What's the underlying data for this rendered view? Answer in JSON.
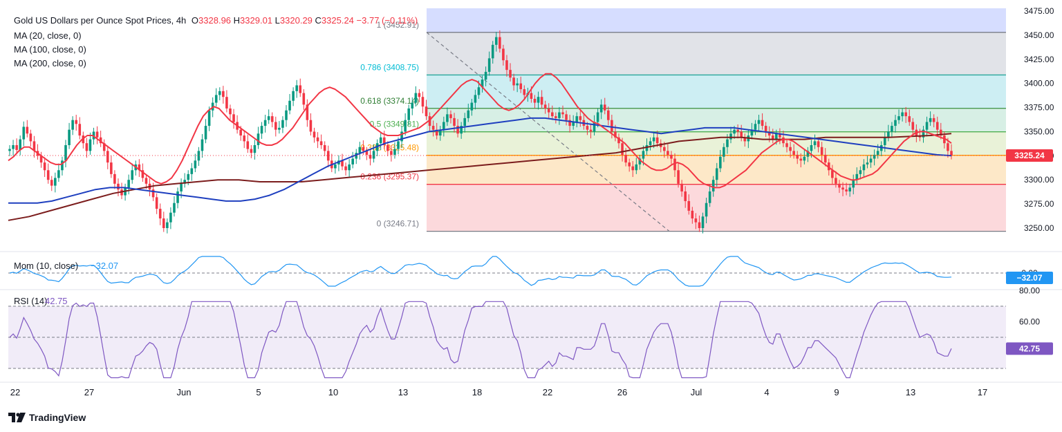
{
  "header": {
    "title": "Gold US Dollars per Ounce Spot Prices, 4h",
    "o_label": "O",
    "o_value": "3328.96",
    "h_label": "H",
    "h_value": "3329.01",
    "l_label": "L",
    "l_value": "3320.29",
    "c_label": "C",
    "c_value": "3325.24",
    "change": "−3.77 (−0.11%)"
  },
  "indicators_legend": [
    "MA (20, close, 0)",
    "MA (100, close, 0)",
    "MA (200, close, 0)"
  ],
  "brand": "TradingView",
  "colors": {
    "up": "#089981",
    "down": "#f23645",
    "ma20": "#f23645",
    "ma100": "#1e3fbf",
    "ma200": "#7b1c1c",
    "momentum": "#2196f3",
    "rsi": "#7e57c2"
  },
  "chart_data": [
    {
      "type": "candlestick",
      "x_tick_labels": [
        "22",
        "27",
        "Jun",
        "5",
        "10",
        "13",
        "18",
        "22",
        "26",
        "Jul",
        "4",
        "9",
        "13",
        "17"
      ],
      "y_tick_labels": [
        "3475.00",
        "3450.00",
        "3425.00",
        "3400.00",
        "3375.00",
        "3350.00",
        "3325.00",
        "3300.00",
        "3275.00",
        "3250.00"
      ],
      "ylim": [
        3240,
        3480
      ],
      "last_price": "3325.24",
      "last_price_value": 3325.24,
      "fibonacci": [
        {
          "level": "1",
          "label": "1 (3452.91)",
          "value": 3452.91
        },
        {
          "level": "0.786",
          "label": "0.786 (3408.75)",
          "value": 3408.75
        },
        {
          "level": "0.618",
          "label": "0.618 (3374.14)",
          "value": 3374.14
        },
        {
          "level": "0.5",
          "label": "0.5 (3349.81)",
          "value": 3349.81
        },
        {
          "level": "0.382",
          "label": "0.382 (3325.48)",
          "value": 3325.48
        },
        {
          "level": "0.236",
          "label": "0.236 (3295.37)",
          "value": 3295.37
        },
        {
          "level": "0",
          "label": "0 (3246.71)",
          "value": 3246.71
        }
      ],
      "closes_approx": [
        3332,
        3336,
        3331,
        3342,
        3355,
        3348,
        3340,
        3330,
        3325,
        3318,
        3310,
        3300,
        3294,
        3302,
        3310,
        3320,
        3336,
        3352,
        3362,
        3358,
        3346,
        3338,
        3330,
        3342,
        3350,
        3344,
        3338,
        3330,
        3318,
        3306,
        3296,
        3290,
        3284,
        3292,
        3300,
        3310,
        3316,
        3310,
        3302,
        3296,
        3290,
        3282,
        3270,
        3260,
        3250,
        3256,
        3266,
        3276,
        3288,
        3296,
        3300,
        3306,
        3312,
        3320,
        3330,
        3342,
        3356,
        3372,
        3380,
        3388,
        3392,
        3386,
        3374,
        3368,
        3360,
        3352,
        3346,
        3340,
        3332,
        3328,
        3336,
        3348,
        3356,
        3362,
        3366,
        3360,
        3352,
        3354,
        3362,
        3372,
        3382,
        3392,
        3398,
        3390,
        3378,
        3362,
        3350,
        3344,
        3340,
        3336,
        3330,
        3320,
        3312,
        3316,
        3320,
        3314,
        3310,
        3316,
        3322,
        3328,
        3334,
        3330,
        3326,
        3322,
        3330,
        3338,
        3344,
        3336,
        3330,
        3326,
        3332,
        3340,
        3350,
        3362,
        3374,
        3380,
        3390,
        3386,
        3376,
        3366,
        3356,
        3352,
        3346,
        3352,
        3360,
        3368,
        3364,
        3356,
        3348,
        3356,
        3364,
        3372,
        3380,
        3388,
        3396,
        3404,
        3412,
        3426,
        3440,
        3448,
        3436,
        3424,
        3414,
        3406,
        3398,
        3400,
        3394,
        3388,
        3390,
        3384,
        3380,
        3386,
        3378,
        3374,
        3370,
        3366,
        3364,
        3370,
        3368,
        3362,
        3356,
        3360,
        3366,
        3362,
        3356,
        3352,
        3350,
        3360,
        3370,
        3378,
        3372,
        3362,
        3350,
        3344,
        3338,
        3326,
        3318,
        3314,
        3310,
        3316,
        3322,
        3330,
        3336,
        3340,
        3344,
        3338,
        3334,
        3330,
        3326,
        3322,
        3310,
        3296,
        3288,
        3278,
        3268,
        3260,
        3256,
        3250,
        3262,
        3276,
        3288,
        3300,
        3312,
        3324,
        3334,
        3342,
        3348,
        3352,
        3350,
        3344,
        3340,
        3346,
        3352,
        3358,
        3362,
        3356,
        3350,
        3346,
        3342,
        3348,
        3344,
        3338,
        3334,
        3330,
        3326,
        3322,
        3320,
        3324,
        3330,
        3336,
        3340,
        3334,
        3326,
        3318,
        3310,
        3302,
        3296,
        3292,
        3290,
        3288,
        3292,
        3300,
        3306,
        3310,
        3316,
        3318,
        3322,
        3326,
        3330,
        3336,
        3344,
        3350,
        3356,
        3362,
        3366,
        3370,
        3366,
        3360,
        3352,
        3346,
        3344,
        3352,
        3360,
        3364,
        3360,
        3352,
        3346,
        3338,
        3330,
        3325.24
      ],
      "ma20_approx": [
        3320,
        3324,
        3330,
        3334,
        3334,
        3330,
        3326,
        3322,
        3318,
        3316,
        3316,
        3320,
        3328,
        3336,
        3342,
        3346,
        3346,
        3342,
        3338,
        3334,
        3330,
        3326,
        3322,
        3318,
        3314,
        3310,
        3306,
        3302,
        3298,
        3296,
        3298,
        3302,
        3310,
        3320,
        3332,
        3344,
        3356,
        3366,
        3372,
        3376,
        3374,
        3368,
        3362,
        3358,
        3354,
        3350,
        3346,
        3342,
        3338,
        3336,
        3336,
        3338,
        3342,
        3348,
        3354,
        3362,
        3370,
        3378,
        3384,
        3390,
        3394,
        3396,
        3394,
        3390,
        3386,
        3380,
        3374,
        3368,
        3362,
        3356,
        3352,
        3348,
        3346,
        3346,
        3346,
        3348,
        3350,
        3352,
        3354,
        3358,
        3362,
        3368,
        3374,
        3380,
        3386,
        3392,
        3398,
        3402,
        3404,
        3402,
        3396,
        3390,
        3384,
        3378,
        3374,
        3372,
        3374,
        3378,
        3384,
        3392,
        3400,
        3406,
        3410,
        3410,
        3406,
        3400,
        3392,
        3384,
        3376,
        3370,
        3364,
        3360,
        3358,
        3354,
        3350,
        3346,
        3342,
        3338,
        3332,
        3326,
        3320,
        3316,
        3312,
        3310,
        3310,
        3312,
        3316,
        3318,
        3316,
        3312,
        3306,
        3300,
        3296,
        3294,
        3292,
        3292,
        3294,
        3298,
        3302,
        3306,
        3310,
        3316,
        3322,
        3328,
        3332,
        3336,
        3340,
        3342,
        3342,
        3340,
        3336,
        3332,
        3328,
        3324,
        3320,
        3316,
        3312,
        3308,
        3304,
        3302,
        3300,
        3300,
        3302,
        3304,
        3306,
        3310,
        3316,
        3322,
        3328,
        3334,
        3340,
        3344,
        3348,
        3350,
        3350,
        3348,
        3346,
        3344,
        3342,
        3338
      ],
      "ma100_approx": [
        3276,
        3276,
        3276,
        3278,
        3282,
        3286,
        3290,
        3292,
        3292,
        3290,
        3288,
        3286,
        3284,
        3282,
        3280,
        3278,
        3278,
        3280,
        3284,
        3290,
        3298,
        3306,
        3314,
        3320,
        3326,
        3332,
        3338,
        3342,
        3346,
        3350,
        3352,
        3354,
        3356,
        3358,
        3360,
        3362,
        3364,
        3364,
        3362,
        3360,
        3358,
        3356,
        3354,
        3352,
        3350,
        3348,
        3350,
        3352,
        3354,
        3354,
        3354,
        3352,
        3350,
        3348,
        3346,
        3344,
        3342,
        3340,
        3338,
        3336,
        3334,
        3332,
        3330,
        3328,
        3326,
        3325
      ],
      "ma200_approx": [
        3258,
        3262,
        3268,
        3274,
        3280,
        3286,
        3290,
        3294,
        3296,
        3298,
        3300,
        3300,
        3298,
        3298,
        3298,
        3300,
        3302,
        3304,
        3306,
        3308,
        3310,
        3312,
        3314,
        3316,
        3318,
        3320,
        3322,
        3324,
        3326,
        3328,
        3332,
        3336,
        3340,
        3342,
        3344,
        3344,
        3342,
        3342,
        3342,
        3344,
        3344,
        3344,
        3344,
        3345,
        3346,
        3348
      ]
    },
    {
      "type": "line",
      "name": "Mom (10, close)",
      "value_label": "−32.07",
      "y_tick_labels": [
        "0.00"
      ],
      "reference_line": 0
    },
    {
      "type": "line",
      "name": "RSI (14)",
      "value_label": "42.75",
      "last_value": 42.75,
      "ylim": [
        20,
        85
      ],
      "y_tick_labels": [
        "80.00",
        "60.00"
      ],
      "bands": [
        70,
        50,
        30
      ]
    }
  ]
}
